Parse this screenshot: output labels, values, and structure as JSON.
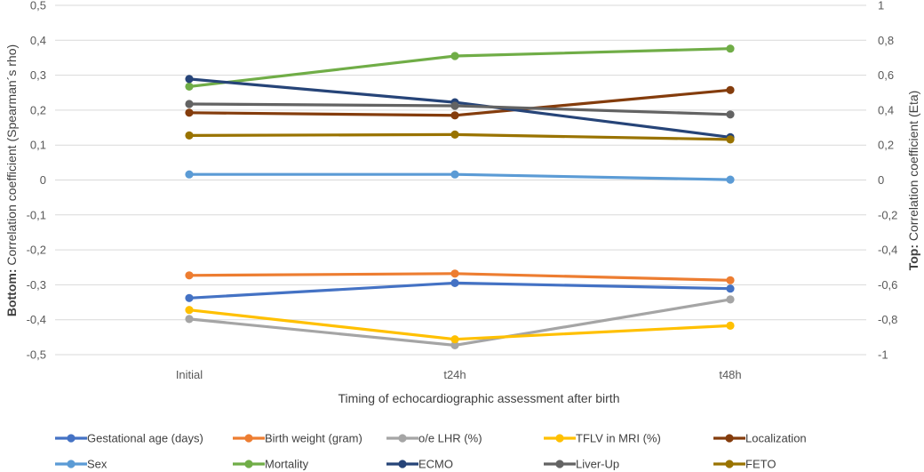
{
  "chart_data": {
    "type": "line",
    "categories": [
      "Initial",
      "t24h",
      "t48h"
    ],
    "xlabel": "Timing of echocardiographic assessment after birth",
    "ylabel_left": {
      "bold": "Bottom:",
      "rest": " Correlation coefficient (Spearman´s rho)"
    },
    "ylabel_right": {
      "bold": "Top:",
      "rest": " Correlation coefficient (Eta)"
    },
    "left_axis": {
      "ylim": [
        -0.5,
        0.5
      ],
      "ticks": [
        "-0,5",
        "-0,4",
        "-0,3",
        "-0,2",
        "-0,1",
        "0",
        "0,1",
        "0,2",
        "0,3",
        "0,4",
        "0,5"
      ]
    },
    "right_axis": {
      "ylim": [
        -1,
        1
      ],
      "ticks": [
        "-1",
        "-0,8",
        "-0,6",
        "-0,4",
        "-0,2",
        "0",
        "0,2",
        "0,4",
        "0,6",
        "0,8",
        "1"
      ]
    },
    "grid": true,
    "legend_position": "bottom",
    "series": [
      {
        "name": "Gestational age (days)",
        "axis": "left",
        "color": "#4472C4",
        "values": [
          -0.338,
          -0.295,
          -0.311
        ]
      },
      {
        "name": "Birth weight (gram)",
        "axis": "left",
        "color": "#ED7D31",
        "values": [
          -0.273,
          -0.268,
          -0.287
        ]
      },
      {
        "name": "o/e LHR (%)",
        "axis": "left",
        "color": "#A5A5A5",
        "values": [
          -0.398,
          -0.473,
          -0.342
        ]
      },
      {
        "name": "TFLV in MRI (%)",
        "axis": "left",
        "color": "#FFC000",
        "values": [
          -0.372,
          -0.456,
          -0.417
        ]
      },
      {
        "name": "Localization",
        "axis": "right",
        "color": "#843C0C",
        "values": [
          0.385,
          0.37,
          0.515
        ]
      },
      {
        "name": "Sex",
        "axis": "right",
        "color": "#5B9BD5",
        "values": [
          0.032,
          0.032,
          0.002
        ]
      },
      {
        "name": "Mortality",
        "axis": "right",
        "color": "#70AD47",
        "values": [
          0.535,
          0.71,
          0.752
        ]
      },
      {
        "name": "ECMO",
        "axis": "right",
        "color": "#264478",
        "values": [
          0.578,
          0.445,
          0.245
        ]
      },
      {
        "name": "Liver-Up",
        "axis": "right",
        "color": "#636363",
        "values": [
          0.435,
          0.425,
          0.375
        ]
      },
      {
        "name": "FETO",
        "axis": "right",
        "color": "#997300",
        "values": [
          0.255,
          0.26,
          0.232
        ]
      }
    ]
  }
}
